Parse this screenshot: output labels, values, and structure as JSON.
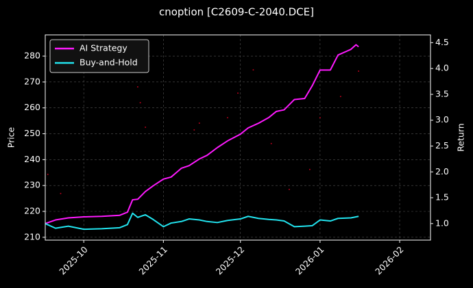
{
  "chart_data": {
    "type": "line",
    "title": "cnoption [C2609-C-2040.DCE]",
    "ylabel": "Price",
    "y2label": "Return",
    "x": [
      "2025-09-16",
      "2025-09-20",
      "2025-09-25",
      "2025-10-01",
      "2025-10-08",
      "2025-10-15",
      "2025-10-18",
      "2025-10-20",
      "2025-10-22",
      "2025-10-25",
      "2025-10-28",
      "2025-11-01",
      "2025-11-04",
      "2025-11-08",
      "2025-11-11",
      "2025-11-15",
      "2025-11-18",
      "2025-11-22",
      "2025-11-26",
      "2025-12-01",
      "2025-12-04",
      "2025-12-08",
      "2025-12-12",
      "2025-12-15",
      "2025-12-18",
      "2025-12-22",
      "2025-12-26",
      "2025-12-29",
      "2026-01-01",
      "2026-01-05",
      "2026-01-08",
      "2026-01-13",
      "2026-01-15",
      "2026-01-16"
    ],
    "series": [
      {
        "name": "AI Strategy",
        "color": "#ff1aff",
        "axis": "y2",
        "values": [
          1.0,
          1.07,
          1.11,
          1.13,
          1.14,
          1.16,
          1.22,
          1.46,
          1.47,
          1.62,
          1.73,
          1.86,
          1.9,
          2.07,
          2.12,
          2.25,
          2.32,
          2.47,
          2.6,
          2.73,
          2.85,
          2.94,
          3.05,
          3.17,
          3.2,
          3.4,
          3.42,
          3.67,
          3.97,
          3.97,
          4.26,
          4.37,
          4.46,
          4.42
        ]
      },
      {
        "name": "Buy-and-Hold",
        "color": "#22e5f0",
        "axis": "y2",
        "values": [
          1.0,
          0.91,
          0.95,
          0.89,
          0.9,
          0.92,
          0.98,
          1.2,
          1.12,
          1.17,
          1.08,
          0.94,
          1.01,
          1.04,
          1.09,
          1.07,
          1.04,
          1.02,
          1.06,
          1.09,
          1.14,
          1.1,
          1.08,
          1.07,
          1.05,
          0.94,
          0.95,
          0.96,
          1.07,
          1.05,
          1.1,
          1.11,
          1.13,
          1.14
        ]
      }
    ],
    "price_points": {
      "color": "#b3001b",
      "x": [
        "2025-09-17",
        "2025-09-22",
        "2025-10-22",
        "2025-10-23",
        "2025-10-25",
        "2025-11-13",
        "2025-11-15",
        "2025-11-26",
        "2025-11-30",
        "2025-12-06",
        "2025-12-13",
        "2025-12-20",
        "2025-12-28",
        "2026-01-01",
        "2026-01-09",
        "2026-01-16"
      ],
      "values": [
        234.3,
        226.9,
        268.1,
        262.0,
        252.5,
        251.5,
        254.1,
        256.2,
        265.7,
        274.7,
        246.2,
        228.5,
        236.2,
        256.2,
        264.4,
        274.2
      ]
    },
    "xlim": [
      "2025-09-16",
      "2026-02-13"
    ],
    "xticks": [
      {
        "value": "2025-10-01",
        "label": "2025-10"
      },
      {
        "value": "2025-11-01",
        "label": "2025-11"
      },
      {
        "value": "2025-12-01",
        "label": "2025-12"
      },
      {
        "value": "2026-01-01",
        "label": "2026-01"
      },
      {
        "value": "2026-02-01",
        "label": "2026-02"
      }
    ],
    "ylim": [
      208.9,
      288.2
    ],
    "yticks": [
      210,
      220,
      230,
      240,
      250,
      260,
      270,
      280
    ],
    "y2lim": [
      0.68,
      4.65
    ],
    "y2ticks": [
      {
        "value": 1,
        "label": "1.0"
      },
      {
        "value": 1.5,
        "label": "1.5"
      },
      {
        "value": 2,
        "label": "2.0"
      },
      {
        "value": 2.5,
        "label": "2.5"
      },
      {
        "value": 3,
        "label": "3.0"
      },
      {
        "value": 3.5,
        "label": "3.5"
      },
      {
        "value": 4,
        "label": "4.0"
      },
      {
        "value": 4.5,
        "label": "4.5"
      }
    ],
    "grid": true,
    "legend": "upper left"
  }
}
